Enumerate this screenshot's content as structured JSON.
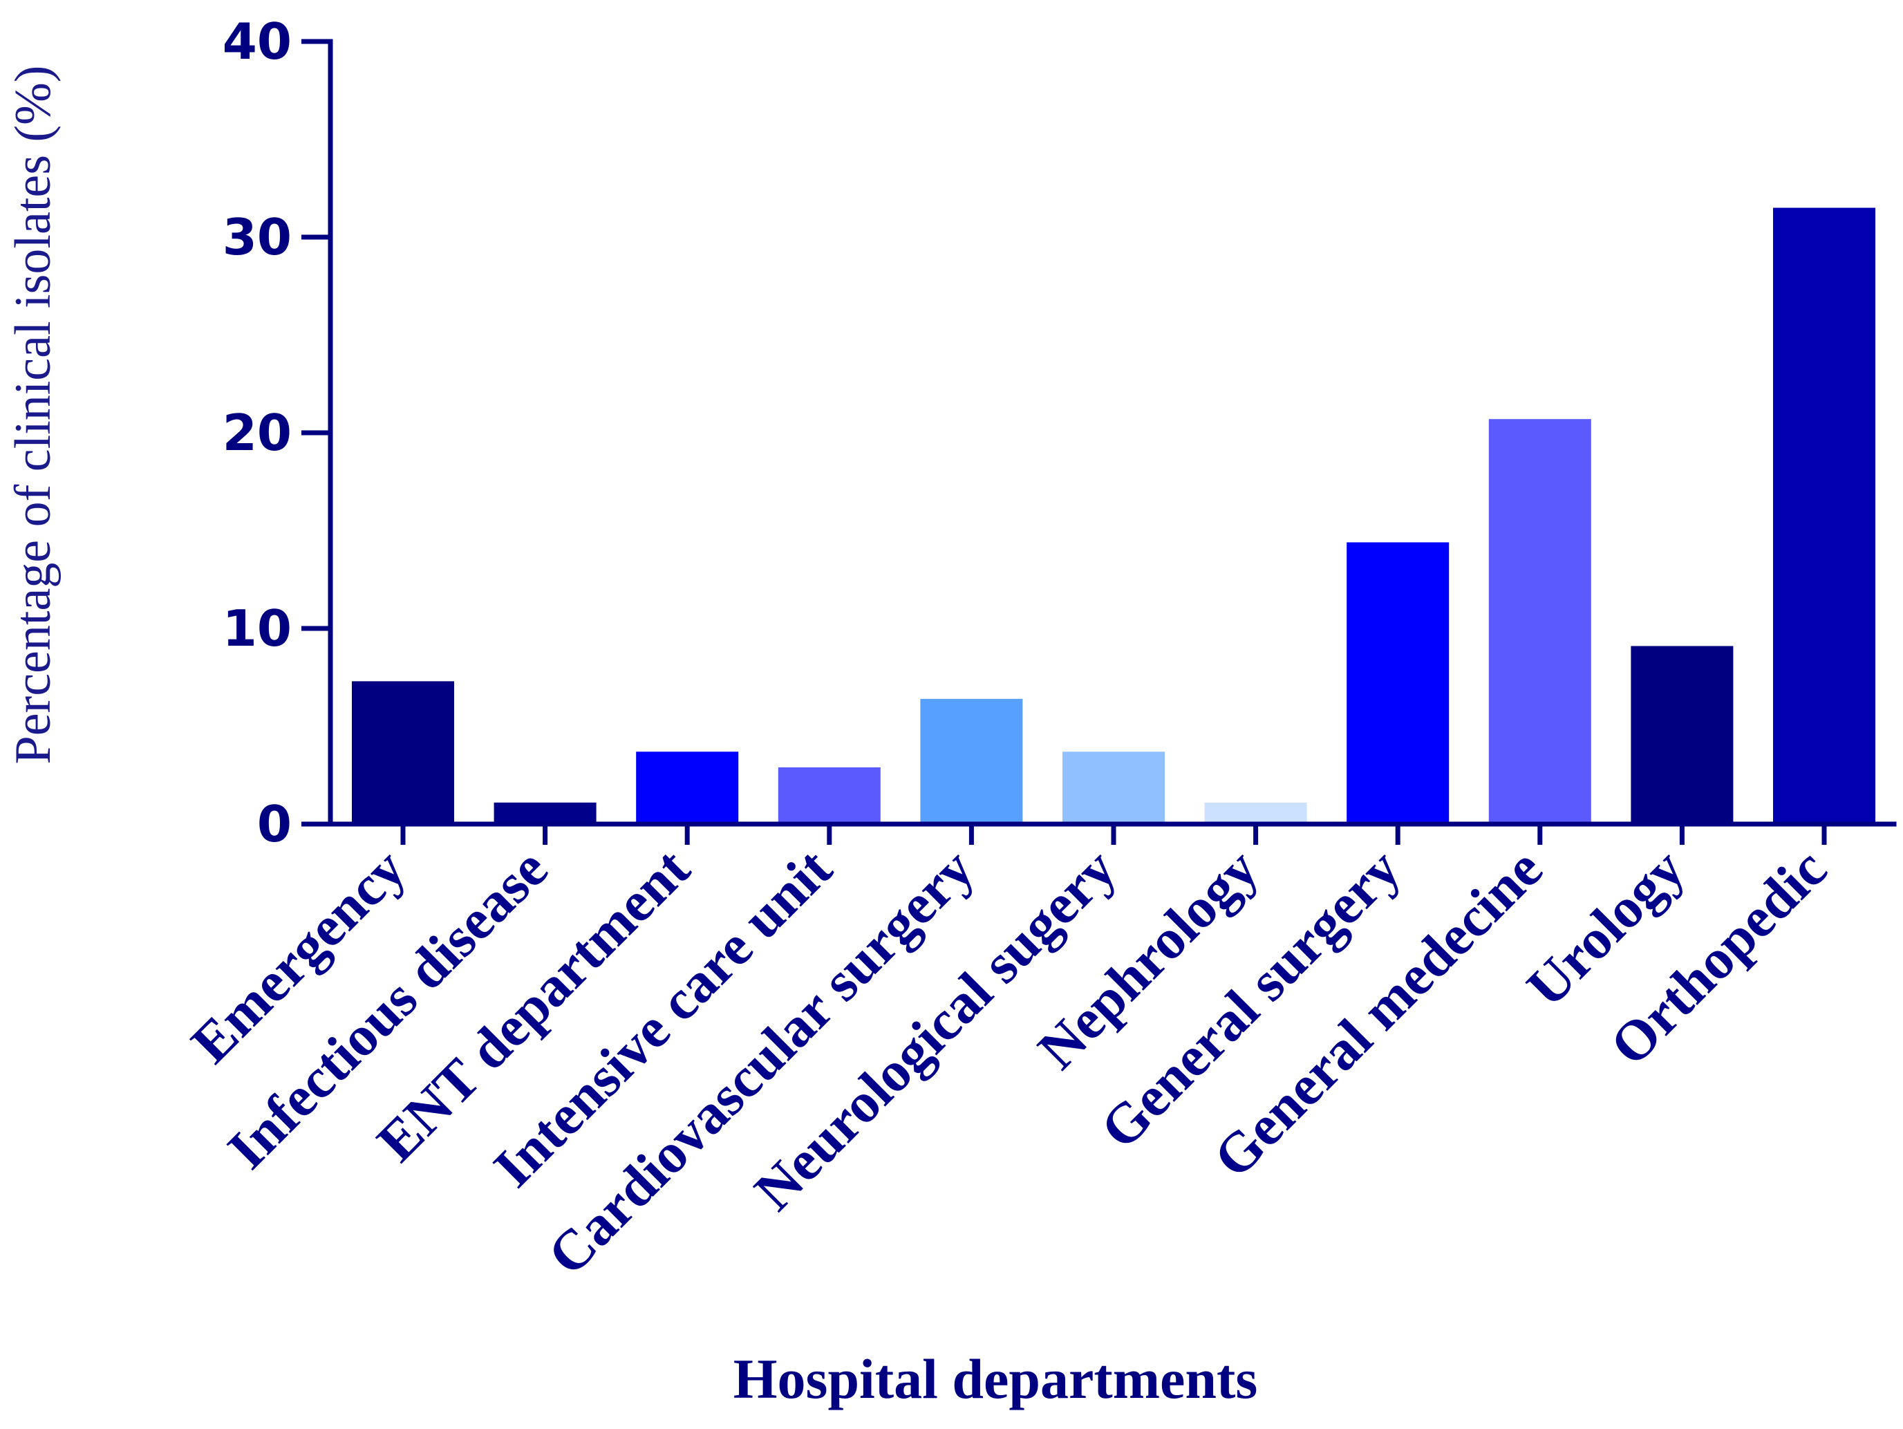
{
  "chart_data": {
    "type": "bar",
    "title": "",
    "xlabel": "Hospital departments",
    "ylabel": "Percentage of clinical isolates (%)",
    "ylim": [
      0,
      40
    ],
    "yticks": [
      0,
      10,
      20,
      30,
      40
    ],
    "grid": false,
    "legend": "none",
    "categories": [
      "Emergency",
      "Infectious disease",
      "ENT department",
      "Intensive care unit",
      "Cardiovascular surgery",
      "Neurological sugery",
      "Nephrology",
      "General surgery",
      "General medecine",
      "Urology",
      "Orthopedic"
    ],
    "values": [
      7.3,
      1.1,
      3.7,
      2.9,
      6.4,
      3.7,
      1.1,
      14.4,
      20.7,
      9.1,
      31.5
    ],
    "colors": [
      "#000080",
      "#00008B",
      "#0000FF",
      "#5A5AFF",
      "#57A0FF",
      "#90C0FF",
      "#CCE0FF",
      "#0000FF",
      "#5A5AFF",
      "#000080",
      "#0000B0"
    ],
    "axis_color": "#000080"
  }
}
